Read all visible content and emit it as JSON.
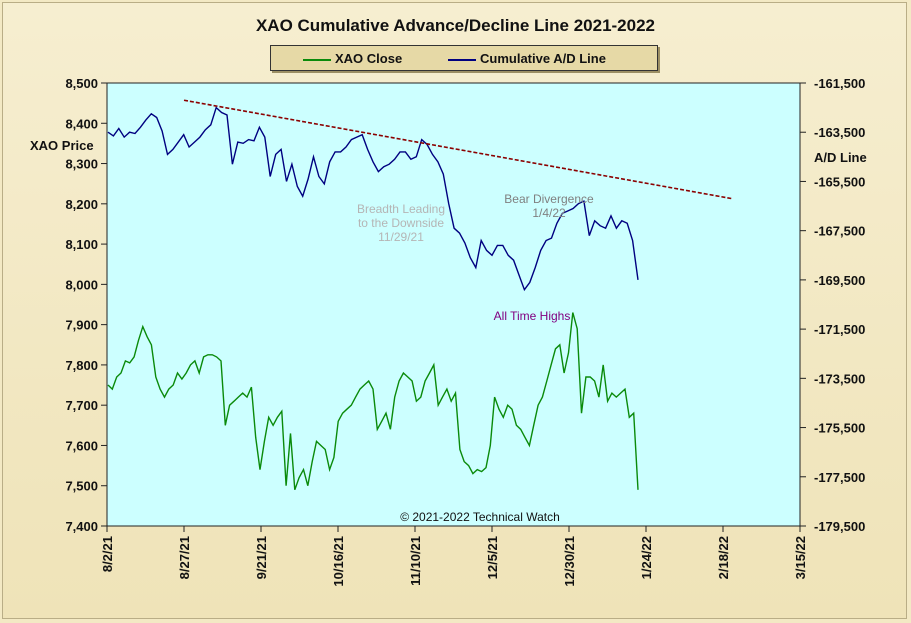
{
  "chart_data": {
    "type": "line",
    "title": "XAO Cumulative Advance/Decline Line 2021-2022",
    "left_axis_label": "XAO Price",
    "right_axis_label": "A/D Line",
    "left_ylim": [
      7400,
      8500
    ],
    "left_ticks": [
      "8,500",
      "8,400",
      "8,300",
      "8,200",
      "8,100",
      "8,000",
      "7,900",
      "7,800",
      "7,700",
      "7,600",
      "7,500",
      "7,400"
    ],
    "right_ylim": [
      -179500,
      -161500
    ],
    "right_ticks": [
      "-161,500",
      "-163,500",
      "-165,500",
      "-167,500",
      "-169,500",
      "-171,500",
      "-173,500",
      "-175,500",
      "-177,500",
      "-179,500"
    ],
    "x_ticks": [
      "8/2/21",
      "8/27/21",
      "9/21/21",
      "10/16/21",
      "11/10/21",
      "12/5/21",
      "12/30/21",
      "1/24/22",
      "2/18/22",
      "3/15/22"
    ],
    "plot_background": "#ccffff",
    "series": [
      {
        "name": "XAO Close",
        "axis": "left",
        "color": "#0a8a0a",
        "values": [
          7750,
          7740,
          7770,
          7780,
          7810,
          7805,
          7820,
          7860,
          7895,
          7870,
          7850,
          7770,
          7740,
          7720,
          7740,
          7750,
          7780,
          7765,
          7780,
          7800,
          7810,
          7780,
          7820,
          7825,
          7825,
          7820,
          7810,
          7650,
          7700,
          7710,
          7720,
          7730,
          7720,
          7745,
          7620,
          7540,
          7610,
          7670,
          7650,
          7670,
          7685,
          7500,
          7630,
          7490,
          7520,
          7540,
          7500,
          7560,
          7610,
          7600,
          7590,
          7540,
          7570,
          7660,
          7680,
          7690,
          7700,
          7720,
          7740,
          7750,
          7760,
          7740,
          7640,
          7660,
          7680,
          7640,
          7720,
          7760,
          7780,
          7770,
          7760,
          7710,
          7720,
          7760,
          7780,
          7800,
          7700,
          7720,
          7740,
          7710,
          7730,
          7590,
          7560,
          7550,
          7530,
          7540,
          7535,
          7545,
          7600,
          7720,
          7690,
          7670,
          7700,
          7690,
          7650,
          7640,
          7620,
          7600,
          7650,
          7700,
          7720,
          7760,
          7800,
          7840,
          7850,
          7780,
          7830,
          7930,
          7890,
          7680,
          7770,
          7770,
          7760,
          7720,
          7800,
          7710,
          7730,
          7720,
          7730,
          7740,
          7670,
          7680,
          7490
        ]
      },
      {
        "name": "Cumulative A/D Line",
        "axis": "right",
        "color": "#000080",
        "values": [
          -163500,
          -163650,
          -163350,
          -163700,
          -163500,
          -163550,
          -163300,
          -163000,
          -162750,
          -162900,
          -163450,
          -164400,
          -164200,
          -163900,
          -163600,
          -164100,
          -163900,
          -163700,
          -163400,
          -163200,
          -162500,
          -162700,
          -162800,
          -164800,
          -163900,
          -163950,
          -163800,
          -163850,
          -163300,
          -163700,
          -165300,
          -164400,
          -164200,
          -165500,
          -164800,
          -165700,
          -166100,
          -165400,
          -164500,
          -165300,
          -165600,
          -164700,
          -164300,
          -164300,
          -164100,
          -163800,
          -163700,
          -163600,
          -164200,
          -164700,
          -165100,
          -164900,
          -164800,
          -164600,
          -164300,
          -164300,
          -164600,
          -164500,
          -163800,
          -164000,
          -164400,
          -164700,
          -165200,
          -166400,
          -167400,
          -167600,
          -168000,
          -168600,
          -169000,
          -167900,
          -168300,
          -168500,
          -168100,
          -168100,
          -168500,
          -168700,
          -169300,
          -169900,
          -169600,
          -169000,
          -168300,
          -167900,
          -167800,
          -167200,
          -166800,
          -166700,
          -166600,
          -166400,
          -166300,
          -167700,
          -167100,
          -167300,
          -167400,
          -166900,
          -167400,
          -167100,
          -167200,
          -167900,
          -169500
        ]
      }
    ],
    "trend_line": {
      "style": "dashed",
      "color": "#8b0000",
      "start": {
        "x": "8/27/21",
        "y": -162200
      },
      "end": {
        "x": "2/21/22",
        "y": -166200
      }
    },
    "annotations": [
      {
        "text": [
          "Breadth Leading",
          "to the Downside",
          "11/29/21"
        ],
        "color": "#b5b5b5"
      },
      {
        "text": [
          "Bear Divergence",
          "1/4/22"
        ],
        "color": "#808080"
      },
      {
        "text": [
          "All Time Highs"
        ],
        "color": "#800080"
      }
    ],
    "copyright": "© 2021-2022  Technical Watch",
    "legend_placement": "top-center"
  }
}
